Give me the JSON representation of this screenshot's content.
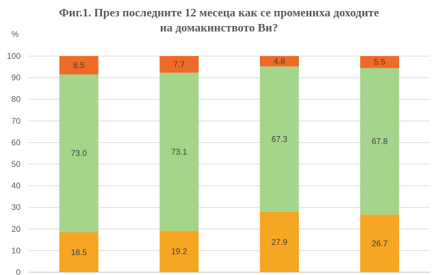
{
  "chart_data": {
    "type": "bar",
    "stacked": true,
    "title_line1": "Фиг.1. През последните 12 месеца как се промениха доходите",
    "title_line2": "на домакинството  Ви?",
    "y_unit_label": "%",
    "ylim": [
      0,
      100
    ],
    "yticks": [
      0,
      10,
      20,
      30,
      40,
      50,
      60,
      70,
      80,
      90,
      100
    ],
    "grid": true,
    "legend": "none",
    "categories": [
      "",
      "",
      "",
      ""
    ],
    "series": [
      {
        "color": "#f5a623",
        "values": [
          18.5,
          19.2,
          27.9,
          26.7
        ],
        "labels": [
          "18.5",
          "19.2",
          "27.9",
          "26.7"
        ]
      },
      {
        "color": "#a4d58a",
        "values": [
          73.0,
          73.1,
          67.3,
          67.8
        ],
        "labels": [
          "73.0",
          "73.1",
          "67.3",
          "67.8"
        ]
      },
      {
        "color": "#ef6a27",
        "values": [
          8.5,
          7.7,
          4.8,
          5.5
        ],
        "labels": [
          "8.5",
          "7.7",
          "4.8",
          "5.5"
        ]
      }
    ]
  }
}
